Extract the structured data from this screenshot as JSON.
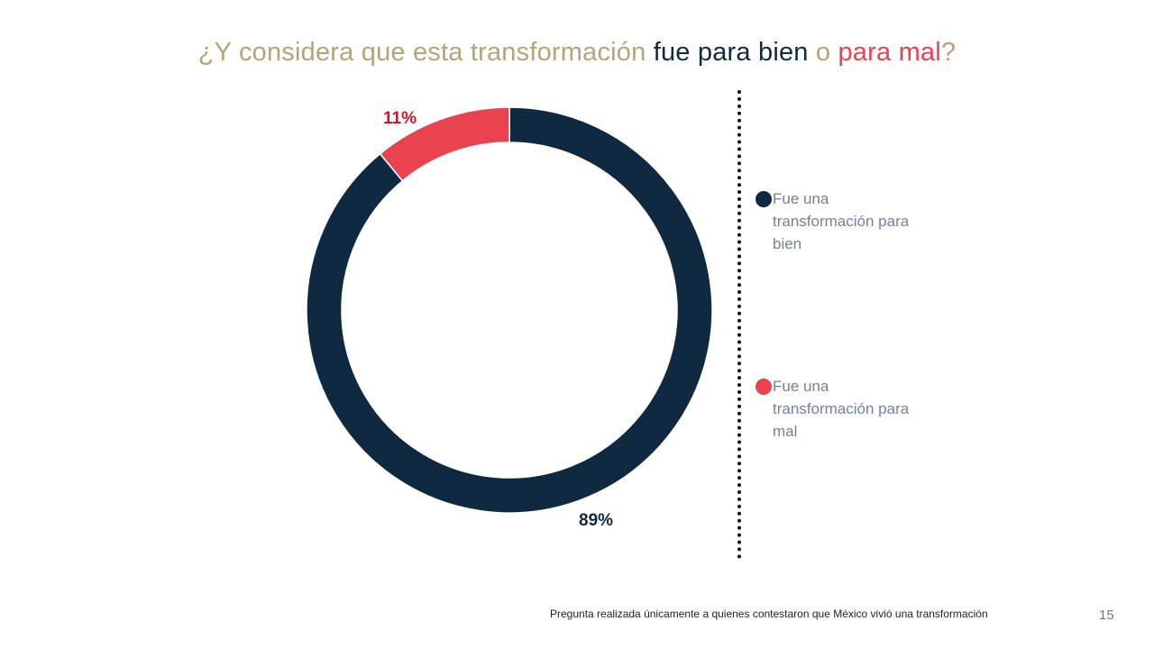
{
  "title": {
    "part1": "¿Y considera que esta transformación ",
    "part2": "fue para bien",
    "part3": " o ",
    "part4": "para mal",
    "part5": "?"
  },
  "colors": {
    "good": "#0f2a40",
    "bad": "#e8434f",
    "title": "#b4a577",
    "legend_text": "#71829a"
  },
  "chart_data": {
    "type": "pie",
    "variant": "donut",
    "title": "¿Y considera que esta transformación fue para bien o para mal?",
    "categories": [
      "Fue una transformación para bien",
      "Fue una transformación para mal"
    ],
    "values": [
      89,
      11
    ],
    "labels": [
      "89%",
      "11%"
    ],
    "colors": [
      "#0f2a40",
      "#e8434f"
    ],
    "legend_position": "right"
  },
  "legend": [
    {
      "label": "Fue una transformación para bien"
    },
    {
      "label": "Fue una transformación para mal"
    }
  ],
  "footnote": "Pregunta realizada únicamente a quienes contestaron que México vivió una transformación",
  "page_number": "15"
}
